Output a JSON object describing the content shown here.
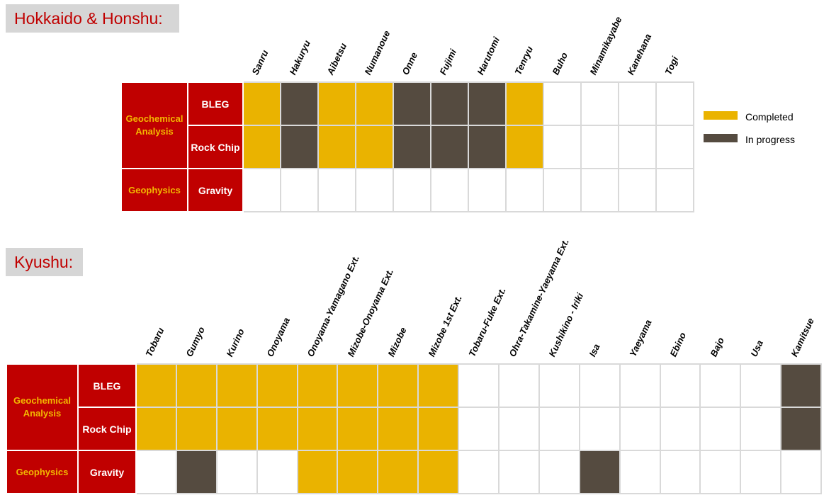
{
  "colors": {
    "completed": "#eab300",
    "in_progress": "#554b40",
    "not_started": "#ffffff",
    "category_bg": "#c00000",
    "category_text": "#f3b700",
    "title_text": "#c00000",
    "title_bg": "#d6d6d6"
  },
  "legend": {
    "completed": "Completed",
    "in_progress": "In progress"
  },
  "chart_data": [
    {
      "type": "table",
      "title": "Hokkaido & Honshu:",
      "columns": [
        "Sanru",
        "Hakuryu",
        "Aibetsu",
        "Numanoue",
        "Onne",
        "Fujimi",
        "Harutomi",
        "Tenryu",
        "Buho",
        "Minamikayabe",
        "Kanehana",
        "Togi"
      ],
      "groups": [
        {
          "category": "Geochemical Analysis",
          "rows": [
            {
              "label": "BLEG",
              "status": [
                "completed",
                "in_progress",
                "completed",
                "completed",
                "in_progress",
                "in_progress",
                "in_progress",
                "completed",
                "none",
                "none",
                "none",
                "none"
              ]
            },
            {
              "label": "Rock Chip",
              "status": [
                "completed",
                "in_progress",
                "completed",
                "completed",
                "in_progress",
                "in_progress",
                "in_progress",
                "completed",
                "none",
                "none",
                "none",
                "none"
              ]
            }
          ]
        },
        {
          "category": "Geophysics",
          "rows": [
            {
              "label": "Gravity",
              "status": [
                "none",
                "none",
                "none",
                "none",
                "none",
                "none",
                "none",
                "none",
                "none",
                "none",
                "none",
                "none"
              ]
            }
          ]
        }
      ]
    },
    {
      "type": "table",
      "title": "Kyushu:",
      "columns": [
        "Tobaru",
        "Gumyo",
        "Kurino",
        "Onoyama",
        "Onoyama-Yamagano Ext.",
        "Mizobe-Onoyama Ext.",
        "Mizobe",
        "Mizobe 1st Ext.",
        "Tobaru-Fuke Ext.",
        "Ohra-Takamine-Yaeyama Ext.",
        "Kushikino - Iriki",
        "Isa",
        "Yaeyama",
        "Ebino",
        "Bajo",
        "Usa",
        "Kamitsue"
      ],
      "groups": [
        {
          "category": "Geochemical Analysis",
          "rows": [
            {
              "label": "BLEG",
              "status": [
                "completed",
                "completed",
                "completed",
                "completed",
                "completed",
                "completed",
                "completed",
                "completed",
                "none",
                "none",
                "none",
                "none",
                "none",
                "none",
                "none",
                "none",
                "in_progress"
              ]
            },
            {
              "label": "Rock Chip",
              "status": [
                "completed",
                "completed",
                "completed",
                "completed",
                "completed",
                "completed",
                "completed",
                "completed",
                "none",
                "none",
                "none",
                "none",
                "none",
                "none",
                "none",
                "none",
                "in_progress"
              ]
            }
          ]
        },
        {
          "category": "Geophysics",
          "rows": [
            {
              "label": "Gravity",
              "status": [
                "none",
                "in_progress",
                "none",
                "none",
                "completed",
                "completed",
                "completed",
                "completed",
                "none",
                "none",
                "none",
                "in_progress",
                "none",
                "none",
                "none",
                "none",
                "none"
              ]
            }
          ]
        }
      ]
    }
  ]
}
